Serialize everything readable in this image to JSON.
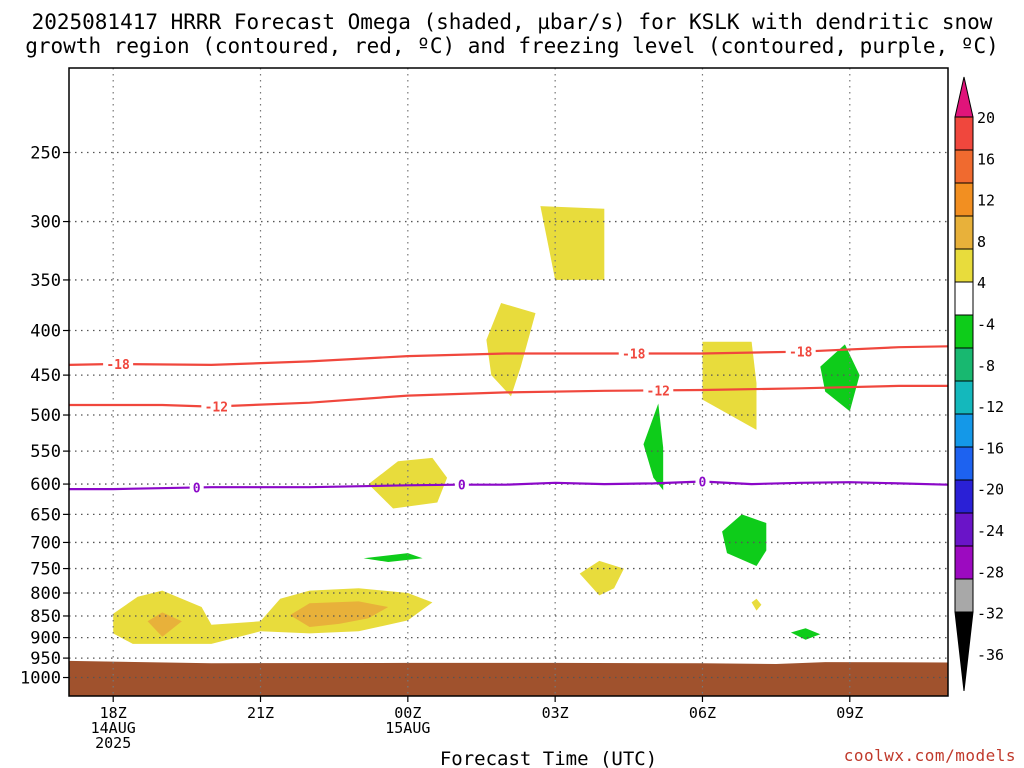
{
  "title_line1": "2025081417 HRRR Forecast Omega (shaded, µbar/s) for KSLK with dendritic snow",
  "title_line2": "growth region (contoured, red, ºC) and freezing level (contoured, purple, ºC)",
  "credit": "coolwx.com/models",
  "chart_data": {
    "type": "contour",
    "title": "2025081417 HRRR Forecast Omega (shaded, µbar/s) for KSLK with dendritic snow growth region (contoured, red, ºC) and freezing level (contoured, purple, ºC)",
    "xlabel": "Forecast Time (UTC)",
    "ylabel": "",
    "y_scale": "log",
    "x_ticks": [
      {
        "hour": 18,
        "lines": [
          "18Z",
          "14AUG",
          "2025"
        ]
      },
      {
        "hour": 21,
        "lines": [
          "21Z"
        ]
      },
      {
        "hour": 24,
        "lines": [
          "00Z",
          "15AUG"
        ]
      },
      {
        "hour": 27,
        "lines": [
          "03Z"
        ]
      },
      {
        "hour": 30,
        "lines": [
          "06Z"
        ]
      },
      {
        "hour": 33,
        "lines": [
          "09Z"
        ]
      }
    ],
    "xlim": [
      17.1,
      35.0
    ],
    "ylim": [
      1050,
      200
    ],
    "y_ticks": [
      250,
      300,
      350,
      400,
      450,
      500,
      550,
      600,
      650,
      700,
      750,
      800,
      850,
      900,
      950,
      1000
    ],
    "grid": true,
    "colorbar": {
      "labels": [
        "20",
        "16",
        "12",
        "8",
        "4",
        "-4",
        "-8",
        "-12",
        "-16",
        "-20",
        "-24",
        "-28",
        "-32",
        "-36"
      ],
      "colors": [
        "#e0147a",
        "#f0473d",
        "#f06a2f",
        "#f28f21",
        "#e8b13a",
        "#e8dc3c",
        "#ffffff",
        "#0ecc1a",
        "#18b870",
        "#14b8bc",
        "#1498e8",
        "#1d62f0",
        "#2a20d6",
        "#6a14c8",
        "#9c0ac0",
        "#a8a8a8",
        "#000000"
      ]
    },
    "contours": [
      {
        "label": "-18",
        "color": "#f0473d",
        "points": [
          [
            17.1,
            438
          ],
          [
            18,
            437
          ],
          [
            20,
            438
          ],
          [
            22,
            434
          ],
          [
            24,
            428
          ],
          [
            26,
            425
          ],
          [
            28,
            425
          ],
          [
            30,
            425
          ],
          [
            32,
            423
          ],
          [
            34,
            418
          ],
          [
            35,
            417
          ]
        ]
      },
      {
        "label": "-12",
        "color": "#f0473d",
        "points": [
          [
            17.1,
            487
          ],
          [
            19,
            487
          ],
          [
            20,
            489
          ],
          [
            22,
            484
          ],
          [
            24,
            475
          ],
          [
            26,
            471
          ],
          [
            28,
            469
          ],
          [
            30,
            468
          ],
          [
            32,
            466
          ],
          [
            34,
            463
          ],
          [
            35,
            463
          ]
        ]
      },
      {
        "label": "0",
        "color": "#8b08c8",
        "points": [
          [
            17.1,
            608
          ],
          [
            18,
            608
          ],
          [
            20,
            605
          ],
          [
            22,
            605
          ],
          [
            24,
            602
          ],
          [
            25,
            601
          ],
          [
            26,
            601
          ],
          [
            27,
            598
          ],
          [
            28,
            600
          ],
          [
            29,
            599
          ],
          [
            30,
            596
          ],
          [
            31,
            600
          ],
          [
            32,
            598
          ],
          [
            33,
            597
          ],
          [
            34,
            599
          ],
          [
            35,
            601
          ]
        ]
      }
    ],
    "shaded_regions": [
      {
        "value_bin": "4 to 8",
        "color": "#e8dc3c",
        "points": [
          [
            26.7,
            288
          ],
          [
            28,
            290
          ],
          [
            28,
            350
          ],
          [
            27,
            350
          ]
        ]
      },
      {
        "value_bin": "4 to 8",
        "color": "#e8dc3c",
        "points": [
          [
            25.9,
            372
          ],
          [
            26.6,
            382
          ],
          [
            26.3,
            440
          ],
          [
            26.1,
            476
          ],
          [
            25.7,
            450
          ],
          [
            25.6,
            410
          ]
        ]
      },
      {
        "value_bin": "4 to 8",
        "color": "#e8dc3c",
        "points": [
          [
            30,
            412
          ],
          [
            31,
            412
          ],
          [
            31.1,
            460
          ],
          [
            31.1,
            520
          ],
          [
            30,
            480
          ]
        ]
      },
      {
        "value_bin": "4 to 8",
        "color": "#e8dc3c",
        "points": [
          [
            23.2,
            600
          ],
          [
            23.8,
            565
          ],
          [
            24.5,
            560
          ],
          [
            24.8,
            590
          ],
          [
            24.6,
            630
          ],
          [
            23.7,
            640
          ]
        ]
      },
      {
        "value_bin": "4 to 8",
        "color": "#e8dc3c",
        "points": [
          [
            27.5,
            760
          ],
          [
            27.9,
            735
          ],
          [
            28.4,
            750
          ],
          [
            28.2,
            790
          ],
          [
            27.9,
            805
          ]
        ]
      },
      {
        "value_bin": "4 to 8",
        "color": "#e8dc3c",
        "points": [
          [
            31,
            820
          ],
          [
            31.1,
            812
          ],
          [
            31.2,
            825
          ],
          [
            31.1,
            838
          ]
        ]
      },
      {
        "value_bin": "4 to 8",
        "color": "#e8dc3c",
        "points": [
          [
            18,
            845
          ],
          [
            18.5,
            808
          ],
          [
            19,
            795
          ],
          [
            19.8,
            830
          ],
          [
            20,
            870
          ],
          [
            21,
            862
          ],
          [
            21.4,
            812
          ],
          [
            22,
            795
          ],
          [
            23,
            790
          ],
          [
            24,
            800
          ],
          [
            24.5,
            820
          ],
          [
            24,
            860
          ],
          [
            23,
            885
          ],
          [
            22,
            890
          ],
          [
            21,
            885
          ],
          [
            20,
            915
          ],
          [
            18.4,
            915
          ],
          [
            18,
            890
          ]
        ]
      },
      {
        "value_bin": "8 to 12",
        "color": "#e8b13a",
        "points": [
          [
            18.7,
            862
          ],
          [
            19,
            842
          ],
          [
            19.4,
            862
          ],
          [
            19,
            898
          ]
        ]
      },
      {
        "value_bin": "8 to 12",
        "color": "#e8b13a",
        "points": [
          [
            21.6,
            848
          ],
          [
            22,
            822
          ],
          [
            23,
            818
          ],
          [
            23.6,
            830
          ],
          [
            23.2,
            855
          ],
          [
            22.6,
            868
          ],
          [
            22,
            875
          ]
        ]
      },
      {
        "value_bin": "-4 to -8",
        "color": "#0ecc1a",
        "points": [
          [
            28.8,
            540
          ],
          [
            29.1,
            485
          ],
          [
            29.2,
            545
          ],
          [
            29.2,
            610
          ],
          [
            29,
            590
          ]
        ]
      },
      {
        "value_bin": "-4 to -8",
        "color": "#0ecc1a",
        "points": [
          [
            32.4,
            440
          ],
          [
            32.9,
            415
          ],
          [
            33.2,
            450
          ],
          [
            33,
            495
          ],
          [
            32.5,
            470
          ]
        ]
      },
      {
        "value_bin": "-4 to -8",
        "color": "#0ecc1a",
        "points": [
          [
            30.4,
            680
          ],
          [
            30.8,
            650
          ],
          [
            31.3,
            665
          ],
          [
            31.3,
            715
          ],
          [
            31.1,
            745
          ],
          [
            30.5,
            720
          ]
        ]
      },
      {
        "value_bin": "-4 to -8",
        "color": "#0ecc1a",
        "points": [
          [
            23.1,
            730
          ],
          [
            24,
            720
          ],
          [
            24.3,
            730
          ],
          [
            23.6,
            737
          ]
        ]
      },
      {
        "value_bin": "-4 to -8",
        "color": "#0ecc1a",
        "points": [
          [
            31.8,
            888
          ],
          [
            32.1,
            878
          ],
          [
            32.4,
            892
          ],
          [
            32.1,
            905
          ]
        ]
      }
    ],
    "terrain": {
      "color": "#a0522d",
      "surface_pressure": [
        [
          17.1,
          957
        ],
        [
          20,
          963
        ],
        [
          24,
          962
        ],
        [
          27,
          962
        ],
        [
          30,
          963
        ],
        [
          31.5,
          965
        ],
        [
          32.5,
          960
        ],
        [
          35,
          961
        ]
      ]
    }
  }
}
